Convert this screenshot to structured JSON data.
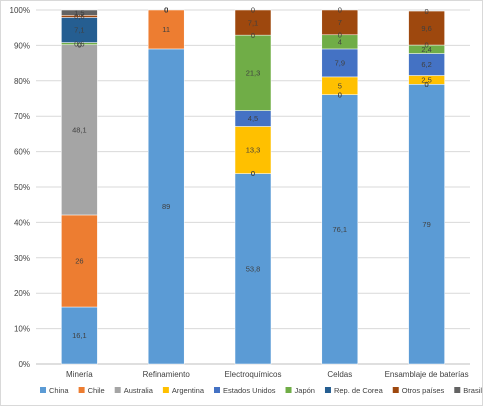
{
  "chart_data": {
    "type": "bar",
    "stacked": true,
    "normalized": true,
    "categories": [
      "Minería",
      "Refinamiento",
      "Electroquímicos",
      "Celdas",
      "Ensamblaje de baterías"
    ],
    "y_ticks": [
      "0%",
      "10%",
      "20%",
      "30%",
      "40%",
      "50%",
      "60%",
      "70%",
      "80%",
      "90%",
      "100%"
    ],
    "ylim": [
      0,
      100
    ],
    "grid": true,
    "legend_position": "bottom",
    "series": [
      {
        "name": "China",
        "color": "#5B9BD5",
        "values": [
          16.1,
          89,
          53.8,
          76.1,
          79
        ],
        "labels": [
          "16,1",
          "89",
          "53,8",
          "76,1",
          "79"
        ]
      },
      {
        "name": "Chile",
        "color": "#ED7D31",
        "values": [
          26,
          11,
          0,
          0,
          0
        ],
        "labels": [
          "26",
          "11",
          "0",
          "0",
          "0"
        ]
      },
      {
        "name": "Australia",
        "color": "#A5A5A5",
        "values": [
          48.1,
          0,
          0,
          0,
          0
        ],
        "labels": [
          "48,1",
          "0",
          "0",
          "0",
          "0"
        ]
      },
      {
        "name": "Argentina",
        "color": "#FFC000",
        "values": [
          0,
          0,
          13.3,
          5,
          2.5
        ],
        "labels": [
          "0",
          "0",
          "13,3",
          "5",
          "2,5"
        ]
      },
      {
        "name": "Estados Unidos",
        "color": "#4472C4",
        "values": [
          0,
          0,
          4.5,
          7.9,
          6.2
        ],
        "labels": [
          "0",
          "0",
          "4,5",
          "7,9",
          "6,2"
        ]
      },
      {
        "name": "Japón",
        "color": "#70AD47",
        "values": [
          0.6,
          0,
          21.3,
          4,
          2.4
        ],
        "labels": [
          "0,6",
          "0",
          "21,3",
          "4",
          "2,4"
        ]
      },
      {
        "name": "Rep. de Corea",
        "color": "#255E91",
        "values": [
          7.1,
          0,
          0,
          0,
          0
        ],
        "labels": [
          "7,1",
          "0",
          "0",
          "0",
          "0"
        ]
      },
      {
        "name": "Otros países",
        "color": "#9E480E",
        "values": [
          0.6,
          0,
          7.1,
          7,
          9.6
        ],
        "labels": [
          "0,6",
          "0",
          "7,1",
          "7",
          "9,6"
        ]
      },
      {
        "name": "Brasil",
        "color": "#636363",
        "values": [
          1.5,
          0,
          0,
          0,
          0
        ],
        "labels": [
          "1,5",
          "0",
          "0",
          "0",
          "0"
        ]
      }
    ]
  }
}
